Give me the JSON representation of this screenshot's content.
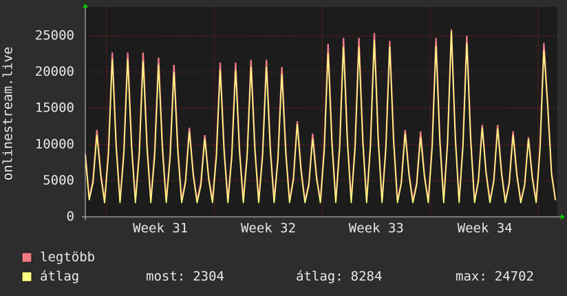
{
  "chart_data": {
    "type": "line",
    "ylabel": "onlinestream.live",
    "ylim": [
      0,
      29000
    ],
    "yticks": [
      0,
      5000,
      10000,
      15000,
      20000,
      25000
    ],
    "xlim": [
      0,
      122.5
    ],
    "xgrid": [
      5.5,
      33.5,
      61.5,
      89.5,
      117.5
    ],
    "xticks": [
      {
        "value": 19.5,
        "label": "Week 31"
      },
      {
        "value": 47.5,
        "label": "Week 32"
      },
      {
        "value": 75.5,
        "label": "Week 33"
      },
      {
        "value": 103.7,
        "label": "Week 34"
      }
    ],
    "grid": true,
    "series": [
      {
        "name": "legtöbb",
        "color": "#f07c84",
        "values": [
          8700,
          2600,
          5000,
          12000,
          6000,
          2200,
          9000,
          22700,
          10000,
          2200,
          9000,
          22700,
          10000,
          2200,
          9000,
          22700,
          10000,
          2200,
          9000,
          22000,
          9800,
          2200,
          8500,
          21000,
          9500,
          2200,
          5000,
          12300,
          6000,
          2200,
          4800,
          11300,
          5500,
          2200,
          8500,
          21300,
          9500,
          2200,
          8500,
          21300,
          9500,
          2200,
          8700,
          21700,
          9600,
          2200,
          8700,
          21700,
          9600,
          2200,
          8300,
          20700,
          9300,
          2200,
          5300,
          13200,
          6500,
          2200,
          4600,
          11500,
          5600,
          2200,
          9500,
          23900,
          10500,
          2200,
          9800,
          24700,
          10800,
          2200,
          9800,
          24700,
          10800,
          2200,
          10000,
          25400,
          11000,
          2200,
          9700,
          24300,
          10800,
          2200,
          4800,
          12000,
          6000,
          2200,
          4700,
          11800,
          5800,
          2200,
          9800,
          24700,
          10800,
          2200,
          10300,
          25900,
          11200,
          2200,
          10000,
          25000,
          11000,
          2200,
          5000,
          12700,
          6200,
          2200,
          5000,
          12700,
          6200,
          2200,
          4700,
          11800,
          5900,
          2200,
          4400,
          11000,
          5500,
          2200,
          9600,
          24000,
          15500,
          6000,
          2300
        ]
      },
      {
        "name": "átlag",
        "color": "#ffff80",
        "values": [
          8400,
          2300,
          4700,
          11300,
          5700,
          1900,
          8600,
          21800,
          9600,
          1900,
          8600,
          21800,
          9600,
          1900,
          8500,
          21500,
          9500,
          1900,
          8300,
          21000,
          9300,
          1900,
          8000,
          20000,
          9000,
          1900,
          4700,
          11800,
          5700,
          1900,
          4300,
          10800,
          5200,
          1900,
          8100,
          20300,
          9000,
          1900,
          8100,
          20300,
          9000,
          1900,
          8300,
          20700,
          9100,
          1900,
          8300,
          20700,
          9100,
          1900,
          7900,
          19700,
          8800,
          1900,
          5100,
          12800,
          6200,
          1900,
          4300,
          10800,
          5300,
          1900,
          9000,
          22600,
          10000,
          1900,
          9400,
          23500,
          10300,
          1900,
          9400,
          23500,
          10300,
          1900,
          9800,
          24400,
          10600,
          1900,
          9400,
          23500,
          10400,
          1900,
          4600,
          11500,
          5700,
          1900,
          4400,
          11000,
          5500,
          1900,
          9400,
          23600,
          10300,
          1900,
          10200,
          25600,
          11000,
          1900,
          9600,
          24000,
          10500,
          1900,
          4900,
          12300,
          6000,
          1900,
          4900,
          12200,
          6000,
          1900,
          4500,
          11300,
          5600,
          1900,
          4300,
          10700,
          5300,
          1900,
          9200,
          23000,
          15000,
          5800,
          2304
        ]
      }
    ],
    "stats": [
      {
        "label": "most:",
        "value": 2304
      },
      {
        "label": "átlag:",
        "value": 8284
      },
      {
        "label": "max:",
        "value": 24702
      }
    ]
  }
}
